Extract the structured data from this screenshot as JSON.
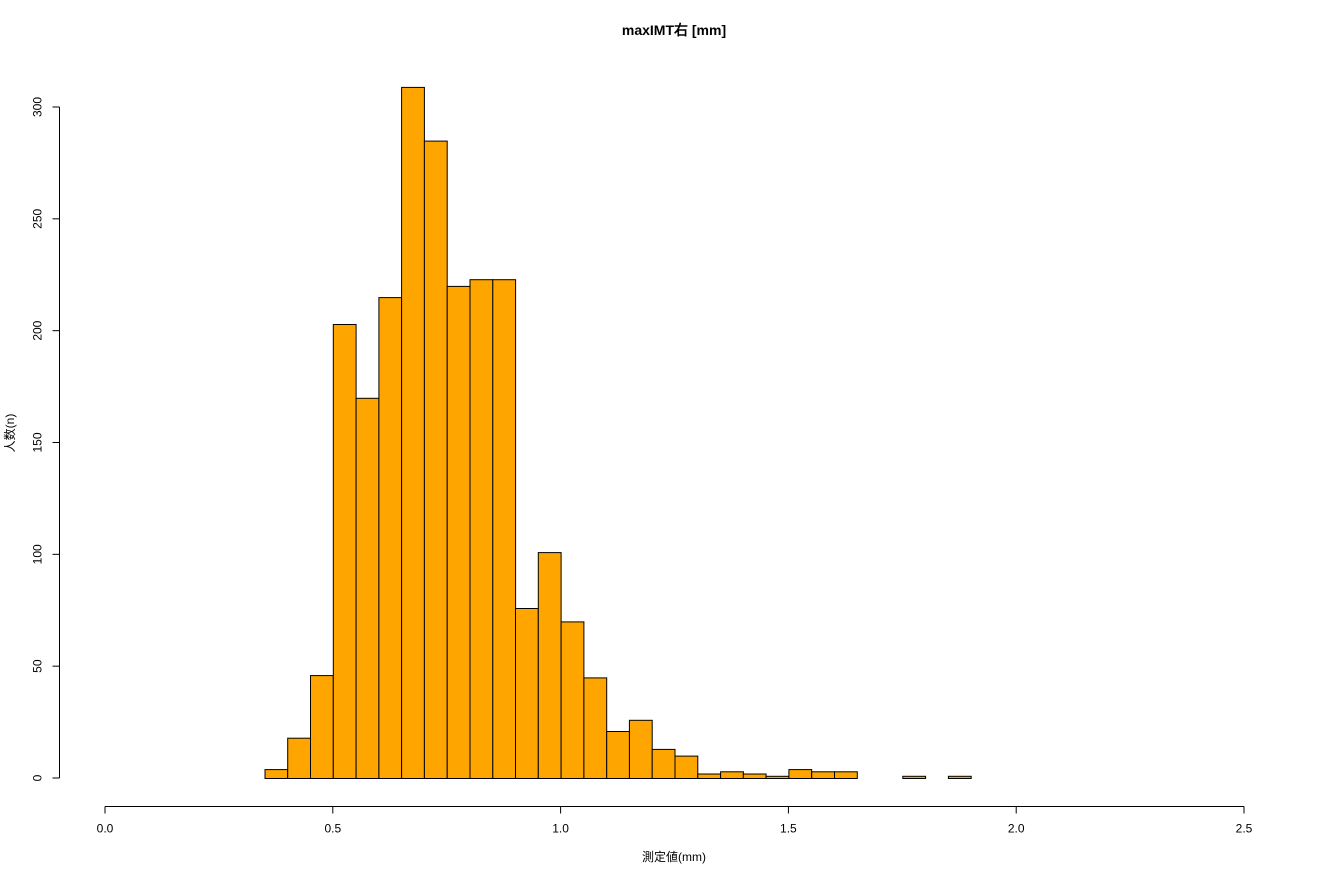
{
  "chart_data": {
    "type": "bar",
    "title": "maxIMT右 [mm]",
    "xlabel": "測定値(mm)",
    "ylabel": "人数(n)",
    "xlim": [
      0.0,
      2.5
    ],
    "ylim": [
      0,
      300
    ],
    "xticks": [
      "0.0",
      "0.5",
      "1.0",
      "1.5",
      "2.0",
      "2.5"
    ],
    "yticks": [
      "0",
      "50",
      "100",
      "150",
      "200",
      "250",
      "300"
    ],
    "bin_width": 0.05,
    "bin_starts": [
      0.35,
      0.4,
      0.45,
      0.5,
      0.55,
      0.6,
      0.65,
      0.7,
      0.75,
      0.8,
      0.85,
      0.9,
      0.95,
      1.0,
      1.05,
      1.1,
      1.15,
      1.2,
      1.25,
      1.3,
      1.35,
      1.4,
      1.45,
      1.5,
      1.55,
      1.6,
      1.65,
      1.7,
      1.75,
      1.8,
      1.85
    ],
    "values": [
      4,
      18,
      46,
      203,
      170,
      215,
      309,
      285,
      220,
      223,
      223,
      76,
      101,
      70,
      45,
      21,
      26,
      13,
      10,
      2,
      3,
      2,
      1,
      4,
      3,
      3,
      0,
      0,
      1,
      0,
      1
    ],
    "bar_color": "#FFA500",
    "grid": false,
    "legend": "none"
  }
}
